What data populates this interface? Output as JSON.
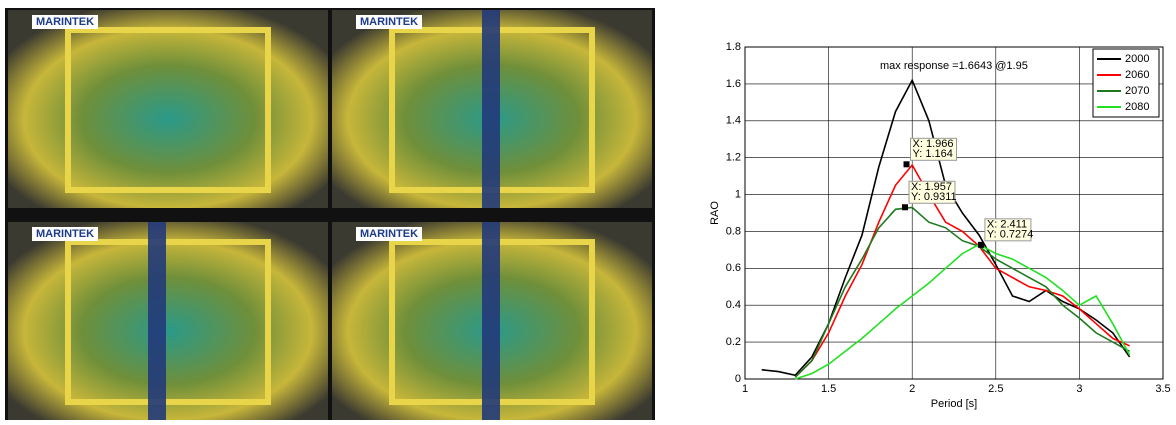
{
  "photos": {
    "panels": [
      {
        "label": "MARINTEK"
      },
      {
        "label": "MARINTEK"
      },
      {
        "label": "MARINTEK"
      },
      {
        "label": "MARINTEK"
      }
    ]
  },
  "chart_data": {
    "type": "line",
    "annotation": "max response =1.6643 @1.95",
    "x_label": "Period [s]",
    "y_label": "RAO",
    "x": [
      1.1,
      1.2,
      1.3,
      1.4,
      1.5,
      1.6,
      1.7,
      1.8,
      1.9,
      2.0,
      2.1,
      2.2,
      2.3,
      2.4,
      2.5,
      2.6,
      2.7,
      2.8,
      2.9,
      3.0,
      3.1,
      3.2,
      3.3
    ],
    "series": [
      {
        "name": "2000",
        "color": "#000000",
        "values": [
          0.05,
          0.04,
          0.02,
          0.12,
          0.3,
          0.55,
          0.78,
          1.15,
          1.45,
          1.62,
          1.4,
          1.05,
          0.9,
          0.78,
          0.62,
          0.45,
          0.42,
          0.48,
          0.42,
          0.38,
          0.32,
          0.25,
          0.12
        ]
      },
      {
        "name": "2060",
        "color": "#ff0000",
        "values": [
          null,
          null,
          0.01,
          0.1,
          0.25,
          0.45,
          0.62,
          0.85,
          1.05,
          1.16,
          1.0,
          0.85,
          0.8,
          0.72,
          0.6,
          0.55,
          0.5,
          0.48,
          0.45,
          0.38,
          0.3,
          0.22,
          0.18
        ]
      },
      {
        "name": "2070",
        "color": "#1f7a1f",
        "values": [
          null,
          null,
          0.01,
          0.1,
          0.3,
          0.5,
          0.65,
          0.82,
          0.92,
          0.93,
          0.85,
          0.82,
          0.75,
          0.72,
          0.65,
          0.6,
          0.55,
          0.5,
          0.4,
          0.33,
          0.25,
          0.2,
          0.15
        ]
      },
      {
        "name": "2080",
        "color": "#22e022",
        "values": [
          null,
          null,
          0,
          0.03,
          0.08,
          0.15,
          0.22,
          0.3,
          0.38,
          0.45,
          0.52,
          0.6,
          0.68,
          0.73,
          0.68,
          0.65,
          0.6,
          0.55,
          0.48,
          0.4,
          0.45,
          0.3,
          0.13
        ]
      }
    ],
    "datatips": [
      {
        "x": 1.966,
        "y": 1.164,
        "label_x": "X: 1.966",
        "label_y": "Y: 1.164"
      },
      {
        "x": 1.957,
        "y": 0.9311,
        "label_x": "X: 1.957",
        "label_y": "Y: 0.9311"
      },
      {
        "x": 2.411,
        "y": 0.7274,
        "label_x": "X: 2.411",
        "label_y": "Y: 0.7274"
      }
    ],
    "xlim": [
      1,
      3.5
    ],
    "xticks": [
      1,
      1.5,
      2,
      2.5,
      3,
      3.5
    ],
    "ylim": [
      0,
      1.8
    ],
    "yticks": [
      0,
      0.2,
      0.4,
      0.6,
      0.8,
      1,
      1.2,
      1.4,
      1.6,
      1.8
    ],
    "grid": true,
    "legend": "upper right"
  }
}
